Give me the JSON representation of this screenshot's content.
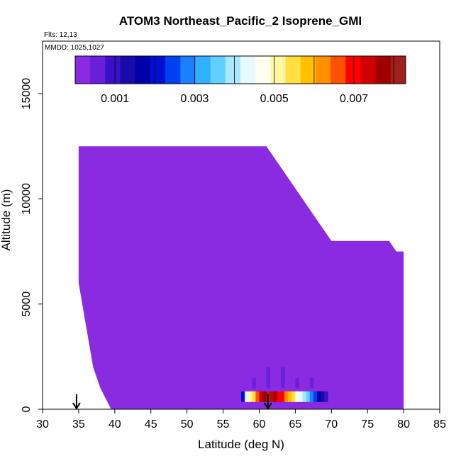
{
  "chart_data": {
    "type": "heatmap",
    "title": "ATOM3 Northeast_Pacific_2 Isoprene_GMI",
    "flights_label": "Flts: 12,13",
    "dates_label": "MMDD: 1025,1027",
    "xlabel": "Latitude (deg N)",
    "ylabel": "Altitude (m)",
    "xlim": [
      30,
      85
    ],
    "ylim": [
      0,
      17500
    ],
    "xticks": [
      "30",
      "35",
      "40",
      "45",
      "50",
      "55",
      "60",
      "65",
      "70",
      "75",
      "80",
      "85"
    ],
    "yticks": [
      "0",
      "5000",
      "10000",
      "15000"
    ],
    "colorbar": {
      "range": [
        0,
        0.0083
      ],
      "tick_labels": [
        "0.001",
        "0.003",
        "0.005",
        "0.007"
      ],
      "colors": [
        "#8a2be2",
        "#6a1fd8",
        "#3a10c8",
        "#1a0aa8",
        "#0000a8",
        "#0010d0",
        "#0040f0",
        "#1a80ff",
        "#30b0ff",
        "#60d0ff",
        "#a8e8ff",
        "#e8f8ff",
        "#fffff0",
        "#fff8a0",
        "#ffe040",
        "#ffc000",
        "#ff9000",
        "#ff5000",
        "#ff0000",
        "#d00000",
        "#a00000",
        "#a02020"
      ]
    },
    "background_value_color": "#8a2be2",
    "envelope": [
      [
        35,
        12500
      ],
      [
        61,
        12500
      ],
      [
        62,
        12000
      ],
      [
        63,
        11500
      ],
      [
        64,
        11000
      ],
      [
        65,
        10500
      ],
      [
        66,
        10000
      ],
      [
        67,
        9500
      ],
      [
        68,
        9000
      ],
      [
        69,
        8500
      ],
      [
        70,
        8000
      ],
      [
        78,
        8000
      ],
      [
        79,
        7500
      ],
      [
        80,
        7500
      ],
      [
        80,
        0
      ],
      [
        39.5,
        0
      ],
      [
        38,
        1000
      ],
      [
        37,
        2000
      ],
      [
        36.5,
        3000
      ],
      [
        36,
        4000
      ],
      [
        35.5,
        5000
      ],
      [
        35,
        6000
      ],
      [
        35,
        9500
      ]
    ],
    "high_cells": [
      {
        "lat": 57.5,
        "alt": 600,
        "value": 0.002
      },
      {
        "lat": 58.0,
        "alt": 600,
        "value": 0.0045
      },
      {
        "lat": 58.5,
        "alt": 600,
        "value": 0.0052
      },
      {
        "lat": 59.0,
        "alt": 600,
        "value": 0.0055
      },
      {
        "lat": 59.5,
        "alt": 600,
        "value": 0.0065
      },
      {
        "lat": 60.0,
        "alt": 600,
        "value": 0.0072
      },
      {
        "lat": 60.5,
        "alt": 600,
        "value": 0.0078
      },
      {
        "lat": 61.0,
        "alt": 600,
        "value": 0.0082
      },
      {
        "lat": 61.5,
        "alt": 600,
        "value": 0.0075
      },
      {
        "lat": 62.0,
        "alt": 600,
        "value": 0.0076
      },
      {
        "lat": 62.5,
        "alt": 600,
        "value": 0.007
      },
      {
        "lat": 63.0,
        "alt": 600,
        "value": 0.0068
      },
      {
        "lat": 63.5,
        "alt": 600,
        "value": 0.0063
      },
      {
        "lat": 64.0,
        "alt": 600,
        "value": 0.0058
      },
      {
        "lat": 64.5,
        "alt": 600,
        "value": 0.0053
      },
      {
        "lat": 65.0,
        "alt": 600,
        "value": 0.0047
      },
      {
        "lat": 65.5,
        "alt": 600,
        "value": 0.0042
      },
      {
        "lat": 66.0,
        "alt": 600,
        "value": 0.0038
      },
      {
        "lat": 66.5,
        "alt": 600,
        "value": 0.0034
      },
      {
        "lat": 67.0,
        "alt": 600,
        "value": 0.003
      },
      {
        "lat": 67.5,
        "alt": 600,
        "value": 0.0025
      },
      {
        "lat": 68.0,
        "alt": 600,
        "value": 0.0018
      },
      {
        "lat": 68.5,
        "alt": 600,
        "value": 0.0012
      },
      {
        "lat": 69.0,
        "alt": 600,
        "value": 0.0009
      },
      {
        "lat": 59.0,
        "alt": 1250,
        "value": 0.0006
      },
      {
        "lat": 61.0,
        "alt": 1250,
        "value": 0.0007
      },
      {
        "lat": 63.0,
        "alt": 1250,
        "value": 0.0007
      },
      {
        "lat": 65.0,
        "alt": 1250,
        "value": 0.0006
      },
      {
        "lat": 67.0,
        "alt": 1250,
        "value": 0.0005
      },
      {
        "lat": 59.0,
        "alt": 1750,
        "value": 0.0003
      },
      {
        "lat": 61.0,
        "alt": 1750,
        "value": 0.0004
      },
      {
        "lat": 63.0,
        "alt": 1750,
        "value": 0.0004
      },
      {
        "lat": 65.0,
        "alt": 1750,
        "value": 0.0003
      },
      {
        "lat": 61.0,
        "alt": 2250,
        "value": 0.0002
      },
      {
        "lat": 63.0,
        "alt": 2250,
        "value": 0.0002
      }
    ],
    "arrow_latitudes": [
      34.7,
      61.2
    ]
  }
}
